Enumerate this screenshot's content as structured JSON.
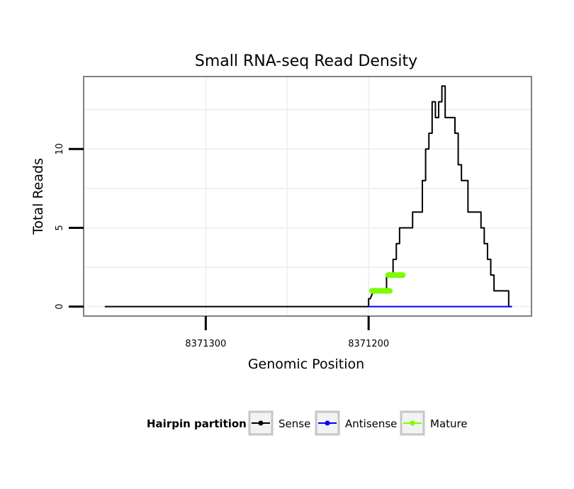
{
  "chart_data": {
    "type": "line",
    "title": "Small RNA-seq Read Density",
    "xlabel": "Genomic Position",
    "ylabel": "Total Reads",
    "x_reversed": true,
    "xlim": [
      8371375,
      8371100
    ],
    "ylim": [
      -0.6,
      14.6
    ],
    "x_ticks": [
      8371300,
      8371200
    ],
    "x_tick_labels": [
      "8371300",
      "8371200"
    ],
    "y_ticks": [
      0,
      5,
      10
    ],
    "y_tick_labels": [
      "0",
      "5",
      "10"
    ],
    "grid": true,
    "legend": {
      "title": "Hairpin partition",
      "position": "bottom",
      "entries": [
        {
          "label": "Sense",
          "color": "#000000"
        },
        {
          "label": "Antisense",
          "color": "#0000ff"
        },
        {
          "label": "Mature",
          "color": "#7cfc00"
        }
      ]
    },
    "series": [
      {
        "name": "Sense",
        "color": "#000000",
        "x": [
          8371362,
          8371200,
          8371200,
          8371199,
          8371197,
          8371197,
          8371195,
          8371195,
          8371193,
          8371193,
          8371191,
          8371191,
          8371189,
          8371189,
          8371187,
          8371187,
          8371185,
          8371185,
          8371183,
          8371183,
          8371181,
          8371181,
          8371179,
          8371179,
          8371177,
          8371177,
          8371175,
          8371175,
          8371173,
          8371173,
          8371170,
          8371170,
          8371167,
          8371167,
          8371165,
          8371165,
          8371163,
          8371163,
          8371161,
          8371161,
          8371159,
          8371159,
          8371157,
          8371157,
          8371155,
          8371155,
          8371153,
          8371153,
          8371151,
          8371151,
          8371149,
          8371149,
          8371147,
          8371147,
          8371145,
          8371145,
          8371143,
          8371143,
          8371141,
          8371141,
          8371139,
          8371139,
          8371137,
          8371137,
          8371135,
          8371135,
          8371133,
          8371133,
          8371131,
          8371131,
          8371129,
          8371129,
          8371127,
          8371127,
          8371125,
          8371125,
          8371123,
          8371123,
          8371121,
          8371121,
          8371119,
          8371119,
          8371116,
          8371116,
          8371114,
          8371114,
          8371112
        ],
        "y": [
          0,
          0,
          0.5,
          0.5,
          1,
          1,
          1,
          1,
          1,
          1,
          1,
          1,
          1,
          2,
          2,
          2,
          2,
          3,
          3,
          4,
          4,
          5,
          5,
          5,
          5,
          5,
          5,
          5,
          5,
          6,
          6,
          6,
          6,
          8,
          8,
          10,
          10,
          11,
          11,
          13,
          13,
          12,
          12,
          13,
          13,
          14,
          14,
          12,
          12,
          12,
          12,
          12,
          12,
          11,
          11,
          9,
          9,
          8,
          8,
          8,
          8,
          6,
          6,
          6,
          6,
          6,
          6,
          6,
          6,
          5,
          5,
          4,
          4,
          3,
          3,
          2,
          2,
          1,
          1,
          1,
          1,
          1,
          1,
          1,
          1,
          0,
          0
        ]
      },
      {
        "name": "Antisense",
        "color": "#0000ff",
        "x": [
          8371200,
          8371112
        ],
        "y": [
          0,
          0
        ]
      },
      {
        "name": "Mature",
        "color": "#7cfc00",
        "segments": [
          {
            "x": [
              8371198,
              8371187
            ],
            "y": [
              1,
              1
            ]
          },
          {
            "x": [
              8371188,
              8371179
            ],
            "y": [
              2,
              2
            ]
          }
        ]
      }
    ]
  }
}
